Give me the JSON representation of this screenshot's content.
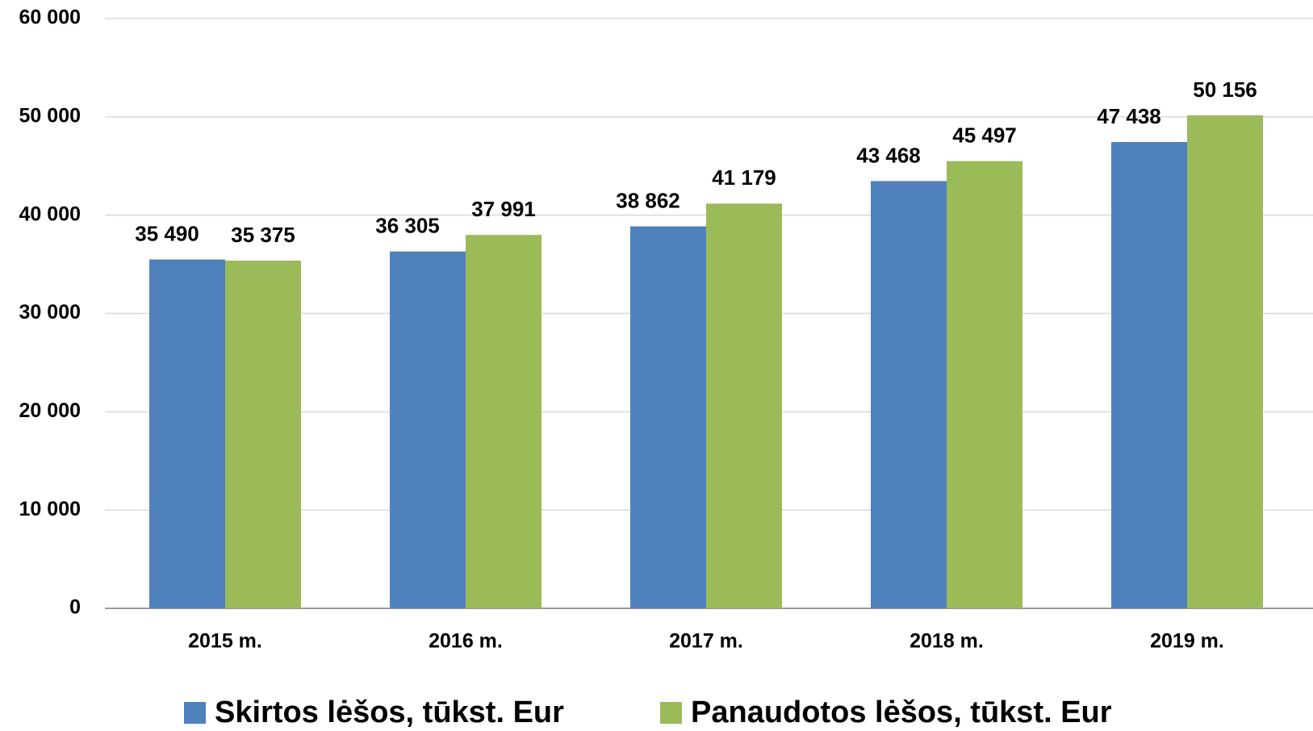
{
  "chart_data": {
    "type": "bar",
    "categories": [
      "2015 m.",
      "2016 m.",
      "2017 m.",
      "2018 m.",
      "2019 m."
    ],
    "series": [
      {
        "name": "Skirtos lėšos, tūkst. Eur",
        "color": "#4f81bd",
        "values": [
          35490,
          36305,
          38862,
          43468,
          47438
        ],
        "value_labels": [
          "35 490",
          "36 305",
          "38 862",
          "43 468",
          "47 438"
        ]
      },
      {
        "name": "Panaudotos lėšos, tūkst. Eur",
        "color": "#9bbb59",
        "values": [
          35375,
          37991,
          41179,
          45497,
          50156
        ],
        "value_labels": [
          "35 375",
          "37 991",
          "41 179",
          "45 497",
          "50 156"
        ]
      }
    ],
    "ylim": [
      0,
      60000
    ],
    "yticks": [
      {
        "value": 0,
        "label": "0"
      },
      {
        "value": 10000,
        "label": "10 000"
      },
      {
        "value": 20000,
        "label": "20 000"
      },
      {
        "value": 30000,
        "label": "30 000"
      },
      {
        "value": 40000,
        "label": "40 000"
      },
      {
        "value": 50000,
        "label": "50 000"
      },
      {
        "value": 60000,
        "label": "60 000"
      }
    ],
    "grid": true,
    "legend": "bottom"
  }
}
